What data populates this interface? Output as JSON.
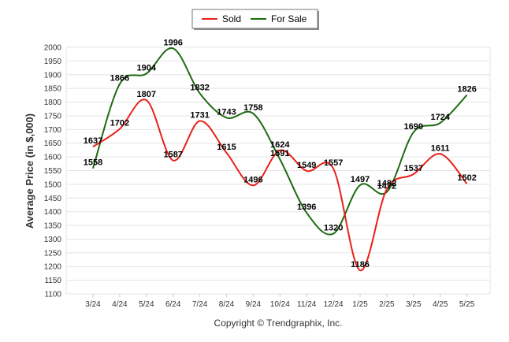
{
  "chart_data": {
    "type": "line",
    "categories": [
      "3/24",
      "4/24",
      "5/24",
      "6/24",
      "7/24",
      "8/24",
      "9/24",
      "10/24",
      "11/24",
      "12/24",
      "1/25",
      "2/25",
      "3/25",
      "4/25",
      "5/25"
    ],
    "series": [
      {
        "name": "Sold",
        "color": "#e8201a",
        "values": [
          1637,
          1702,
          1807,
          1587,
          1731,
          1615,
          1496,
          1624,
          1549,
          1557,
          1186,
          1482,
          1537,
          1611,
          1502
        ]
      },
      {
        "name": "For Sale",
        "color": "#1d6b11",
        "values": [
          1558,
          1866,
          1904,
          1996,
          1832,
          1743,
          1758,
          1591,
          1396,
          1320,
          1497,
          1472,
          1690,
          1724,
          1826
        ]
      }
    ],
    "ylabel": "Average Price (in $,000)",
    "xlabel": "",
    "ylim": [
      1100,
      2000
    ],
    "yticks": [
      1100,
      1150,
      1200,
      1250,
      1300,
      1350,
      1400,
      1450,
      1500,
      1550,
      1600,
      1650,
      1700,
      1750,
      1800,
      1850,
      1900,
      1950,
      2000
    ],
    "grid": true,
    "legend_position": "top-center",
    "data_labels": true
  },
  "footer": {
    "copyright": "Copyright © Trendgraphix, Inc."
  }
}
